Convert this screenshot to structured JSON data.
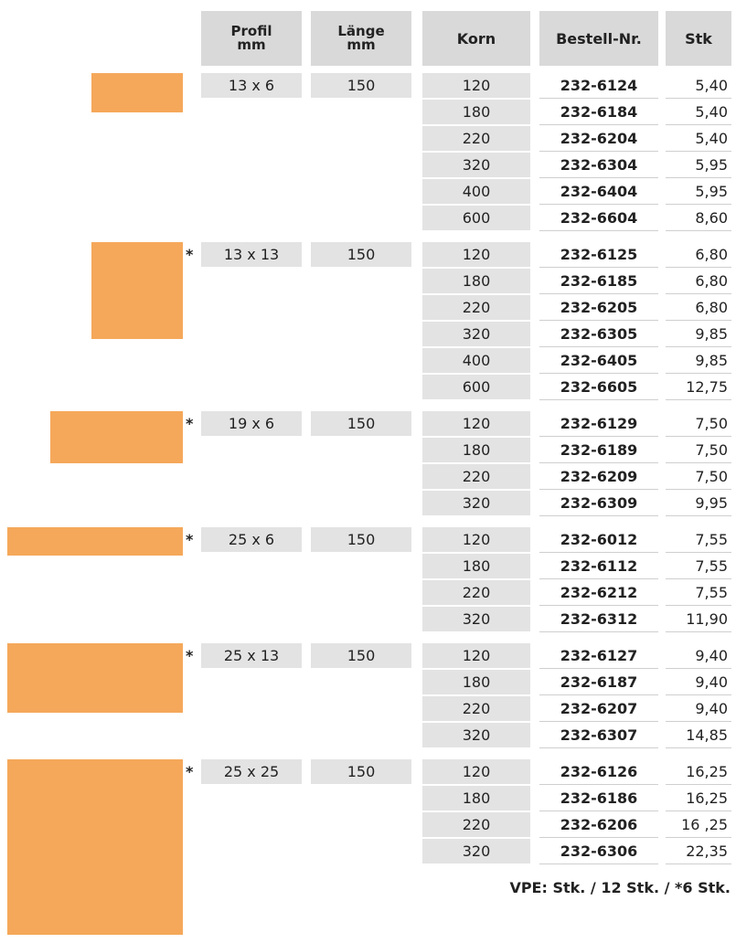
{
  "header": [
    [
      "Profil",
      "mm"
    ],
    [
      "Länge",
      "mm"
    ],
    [
      "Korn"
    ],
    [
      "Bestell-Nr."
    ],
    [
      "Stk"
    ]
  ],
  "groups": [
    {
      "profil": "13 x 6",
      "laenge": "150",
      "rows": [
        [
          "120",
          "232-6124",
          "5,40"
        ],
        [
          "180",
          "232-6184",
          "5,40"
        ],
        [
          "220",
          "232-6204",
          "5,40"
        ],
        [
          "320",
          "232-6304",
          "5,95"
        ],
        [
          "400",
          "232-6404",
          "5,95"
        ],
        [
          "600",
          "232-6604",
          "8,60"
        ]
      ]
    },
    {
      "mark": "*",
      "profil": "13 x 13",
      "laenge": "150",
      "rows": [
        [
          "120",
          "232-6125",
          "6,80"
        ],
        [
          "180",
          "232-6185",
          "6,80"
        ],
        [
          "220",
          "232-6205",
          "6,80"
        ],
        [
          "320",
          "232-6305",
          "9,85"
        ],
        [
          "400",
          "232-6405",
          "9,85"
        ],
        [
          "600",
          "232-6605",
          "12,75"
        ]
      ]
    },
    {
      "mark": "*",
      "profil": "19 x 6",
      "laenge": "150",
      "rows": [
        [
          "120",
          "232-6129",
          "7,50"
        ],
        [
          "180",
          "232-6189",
          "7,50"
        ],
        [
          "220",
          "232-6209",
          "7,50"
        ],
        [
          "320",
          "232-6309",
          "9,95"
        ]
      ]
    },
    {
      "mark": "*",
      "profil": "25 x 6",
      "laenge": "150",
      "rows": [
        [
          "120",
          "232-6012",
          "7,55"
        ],
        [
          "180",
          "232-6112",
          "7,55"
        ],
        [
          "220",
          "232-6212",
          "7,55"
        ],
        [
          "320",
          "232-6312",
          "11,90"
        ]
      ]
    },
    {
      "mark": "*",
      "profil": "25 x 13",
      "laenge": "150",
      "rows": [
        [
          "120",
          "232-6127",
          "9,40"
        ],
        [
          "180",
          "232-6187",
          "9,40"
        ],
        [
          "220",
          "232-6207",
          "9,40"
        ],
        [
          "320",
          "232-6307",
          "14,85"
        ]
      ]
    },
    {
      "mark": "*",
      "profil": "25 x 25",
      "laenge": "150",
      "rows": [
        [
          "120",
          "232-6126",
          "16,25"
        ],
        [
          "180",
          "232-6186",
          "16,25"
        ],
        [
          "220",
          "232-6206",
          "16 ,25"
        ],
        [
          "320",
          "232-6306",
          "22,35"
        ]
      ]
    }
  ],
  "footer": "VPE: Stk. / 12 Stk. / *6 Stk."
}
